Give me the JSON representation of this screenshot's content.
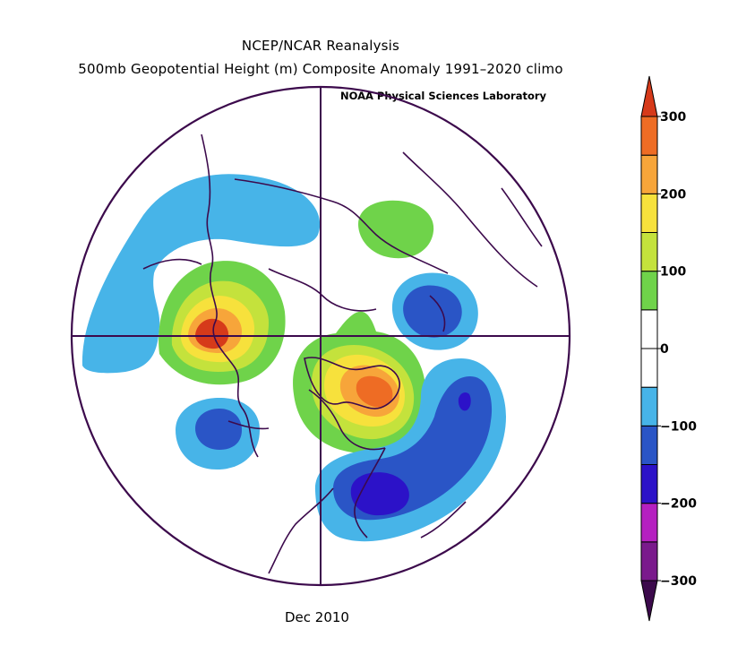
{
  "header": {
    "title_line1": "NCEP/NCAR Reanalysis",
    "title_line2": "500mb Geopotential Height (m) Composite Anomaly 1991–2020 climo",
    "credit": "NOAA Physical Sciences Laboratory"
  },
  "footer": {
    "date": "Dec 2010"
  },
  "colorbar": {
    "min": -300,
    "max": 300,
    "step": 50,
    "tick_labels": [
      "300",
      "200",
      "100",
      "0",
      "−100",
      "−200",
      "−300"
    ],
    "tick_values": [
      300,
      200,
      100,
      0,
      -100,
      -200,
      -300
    ],
    "colors": [
      "#7a1a8c",
      "#b520c0",
      "#2c12c8",
      "#2a55c6",
      "#47b4e8",
      "#ffffff",
      "#ffffff",
      "#6fd34a",
      "#c4e23c",
      "#f7e13c",
      "#f7a53a",
      "#ee6c24"
    ],
    "under_color": "#3c0a4c",
    "over_color": "#d63a1a"
  },
  "map": {
    "projection": "north-polar-stereographic",
    "colors": {
      "green": "#6fd34a",
      "lime": "#c4e23c",
      "yellow": "#f7e13c",
      "orange": "#f7a53a",
      "red_orange": "#ee6c24",
      "red": "#d63a1a",
      "light_blue": "#47b4e8",
      "blue": "#2a55c6",
      "dark_blue": "#2c12c8",
      "outline": "#3c0a4c"
    }
  }
}
